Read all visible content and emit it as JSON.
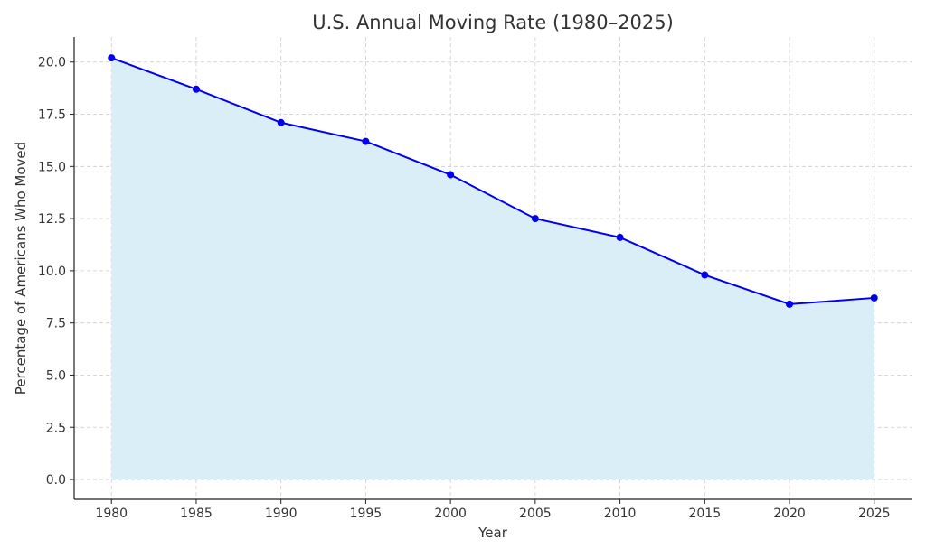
{
  "chart_data": {
    "type": "area",
    "title": "U.S. Annual Moving Rate (1980–2025)",
    "xlabel": "Year",
    "ylabel": "Percentage of Americans Who Moved",
    "x": [
      1980,
      1985,
      1990,
      1995,
      2000,
      2005,
      2010,
      2015,
      2020,
      2025
    ],
    "values": [
      20.2,
      18.7,
      17.1,
      16.2,
      14.6,
      12.5,
      11.6,
      9.8,
      8.4,
      8.7
    ],
    "xticks": [
      "1980",
      "1985",
      "1990",
      "1995",
      "2000",
      "2005",
      "2010",
      "2015",
      "2020",
      "2025"
    ],
    "yticks": [
      "0.0",
      "2.5",
      "5.0",
      "7.5",
      "10.0",
      "12.5",
      "15.0",
      "17.5",
      "20.0"
    ],
    "xlim": [
      1977.8,
      2027.2
    ],
    "ylim": [
      -0.95,
      21.2
    ],
    "grid": true,
    "line_color": "#0000ee",
    "fill_color": "#d9eef7",
    "markers": true
  }
}
